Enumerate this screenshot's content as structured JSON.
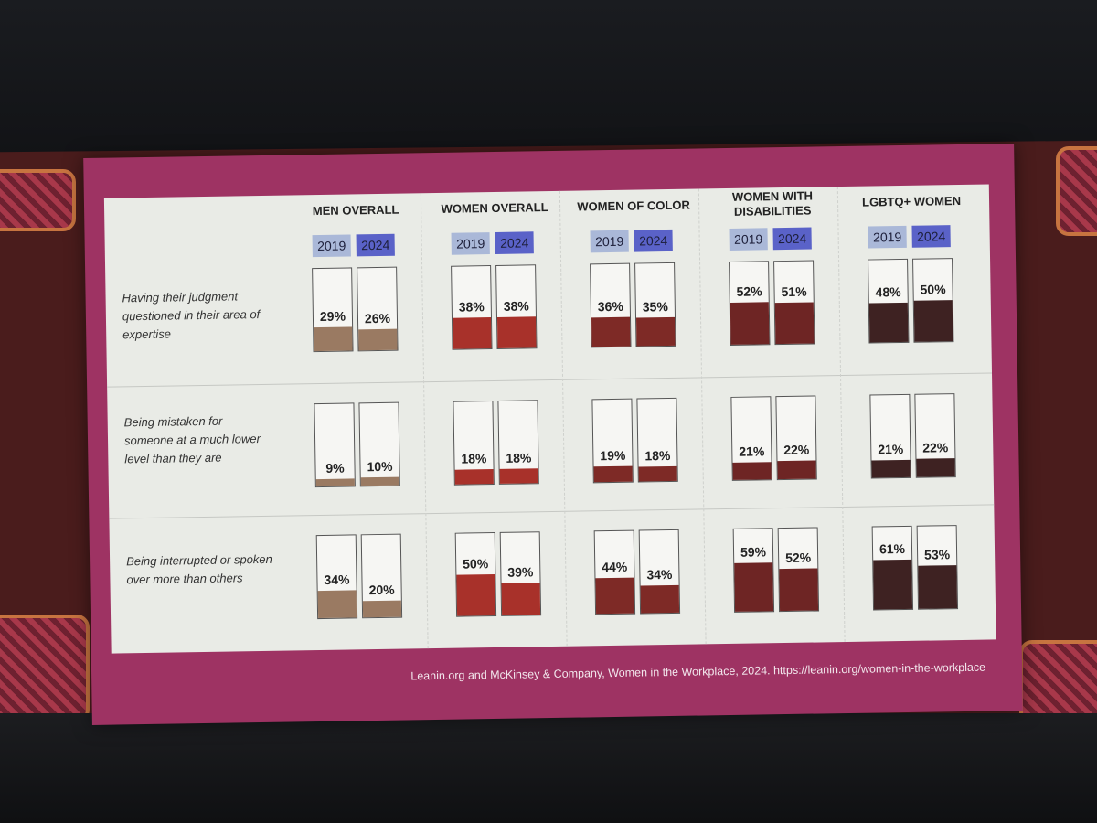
{
  "slide": {
    "background_color": "#9e3363",
    "panel_color": "#e9ebe6",
    "source": "Leanin.org and McKinsey & Company, Women in the Workplace, 2024. https://leanin.org/women-in-the-workplace"
  },
  "legend": {
    "year_a": "2019",
    "year_b": "2024",
    "year_a_color": "#aab8d8",
    "year_b_color": "#5a62c8"
  },
  "groups": [
    {
      "label": "MEN OVERALL",
      "color": "#9a7a62"
    },
    {
      "label": "WOMEN OVERALL",
      "color": "#a8312a"
    },
    {
      "label": "WOMEN OF COLOR",
      "color": "#7e2a26"
    },
    {
      "label": "WOMEN WITH DISABILITIES",
      "color": "#6e2524"
    },
    {
      "label": "LGBTQ+ WOMEN",
      "color": "#3e2222"
    }
  ],
  "rows": [
    {
      "label": "Having their judgment questioned in their area of expertise"
    },
    {
      "label": "Being mistaken for someone at a much lower level than they are"
    },
    {
      "label": "Being interrupted or spoken over more than others"
    }
  ],
  "chart_data": {
    "type": "bar",
    "title": "",
    "categories": [
      "Men overall",
      "Women overall",
      "Women of color",
      "Women with disabilities",
      "LGBTQ+ women"
    ],
    "series_years": [
      "2019",
      "2024"
    ],
    "ylim": [
      0,
      100
    ],
    "unit": "%",
    "panels": [
      {
        "name": "Having their judgment questioned in their area of expertise",
        "series": [
          {
            "name": "2019",
            "values": [
              29,
              38,
              36,
              52,
              48
            ]
          },
          {
            "name": "2024",
            "values": [
              26,
              38,
              35,
              51,
              50
            ]
          }
        ]
      },
      {
        "name": "Being mistaken for someone at a much lower level than they are",
        "series": [
          {
            "name": "2019",
            "values": [
              9,
              18,
              19,
              21,
              21
            ]
          },
          {
            "name": "2024",
            "values": [
              10,
              18,
              18,
              22,
              22
            ]
          }
        ]
      },
      {
        "name": "Being interrupted or spoken over more than others",
        "series": [
          {
            "name": "2019",
            "values": [
              34,
              50,
              44,
              59,
              61
            ]
          },
          {
            "name": "2024",
            "values": [
              20,
              39,
              34,
              52,
              53
            ]
          }
        ]
      }
    ],
    "source": "Leanin.org and McKinsey & Company, Women in the Workplace, 2024. https://leanin.org/women-in-the-workplace"
  }
}
